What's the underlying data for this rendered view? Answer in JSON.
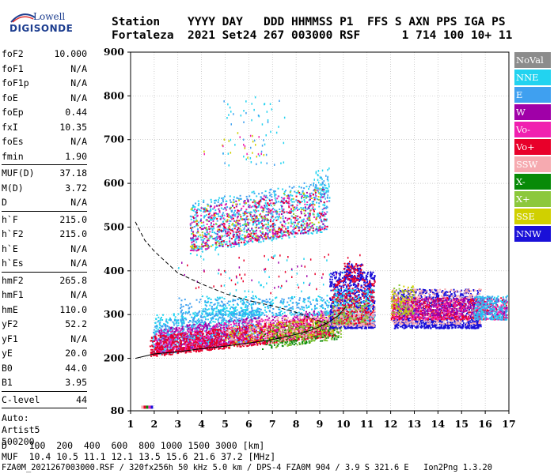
{
  "logo": {
    "line1": "Lowell",
    "line2": "DIGISONDE"
  },
  "header": {
    "line1": "Station    YYYY DAY   DDD HHMMSS P1  FFS S AXN PPS IGA PS",
    "line2": "Fortaleza  2021 Set24 267 003000 RSF      1 714 100 10+ 11"
  },
  "params": {
    "groups": [
      [
        [
          "foF2",
          "10.000"
        ],
        [
          "foF1",
          "N/A"
        ],
        [
          "foF1p",
          "N/A"
        ],
        [
          "foE",
          "N/A"
        ],
        [
          "foEp",
          "0.44"
        ],
        [
          "fxI",
          "10.35"
        ],
        [
          "foEs",
          "N/A"
        ],
        [
          "fmin",
          "1.90"
        ]
      ],
      [
        [
          "MUF(D)",
          "37.18"
        ],
        [
          "M(D)",
          "3.72"
        ],
        [
          "D",
          "N/A"
        ]
      ],
      [
        [
          "h`F",
          "215.0"
        ],
        [
          "h`F2",
          "215.0"
        ],
        [
          "h`E",
          "N/A"
        ],
        [
          "h`Es",
          "N/A"
        ]
      ],
      [
        [
          "hmF2",
          "265.8"
        ],
        [
          "hmF1",
          "N/A"
        ],
        [
          "hmE",
          "110.0"
        ],
        [
          "yF2",
          "52.2"
        ],
        [
          "yF1",
          "N/A"
        ],
        [
          "yE",
          "20.0"
        ],
        [
          "B0",
          "44.0"
        ],
        [
          "B1",
          "3.95"
        ]
      ],
      [
        [
          "C-level",
          "44"
        ]
      ]
    ],
    "auto_lines": [
      "Auto:",
      "Artist5",
      "500200"
    ]
  },
  "legend": [
    {
      "label": "NoVal",
      "color": "#8c8c8c"
    },
    {
      "label": "NNE",
      "color": "#22d3f0"
    },
    {
      "label": "E",
      "color": "#3fa0f0"
    },
    {
      "label": "W",
      "color": "#a000a8"
    },
    {
      "label": "Vo-",
      "color": "#f020b0"
    },
    {
      "label": "Vo+",
      "color": "#e8002a"
    },
    {
      "label": "SSW",
      "color": "#f6aab0"
    },
    {
      "label": "X-",
      "color": "#088a08"
    },
    {
      "label": "X+",
      "color": "#8cc83c"
    },
    {
      "label": "SSE",
      "color": "#d0d000"
    },
    {
      "label": "NNW",
      "color": "#1a10d8"
    }
  ],
  "footer": {
    "line1": "D    100  200  400  600  800 1000 1500 3000 [km]",
    "line2": "MUF  10.4 10.5 11.1 12.1 13.5 15.6 21.6 37.2 [MHz]",
    "line3": "FZA0M_2021267003000.RSF / 320fx256h 50 kHz 5.0 km / DPS-4 FZA0M 904 / 3.9 S 321.6 E   Ion2Png 1.3.20"
  },
  "chart_data": {
    "type": "scatter",
    "xlim": [
      1,
      17
    ],
    "ylim": [
      80,
      900
    ],
    "xticks": [
      1,
      2,
      3,
      4,
      5,
      6,
      7,
      8,
      9,
      10,
      11,
      12,
      13,
      14,
      15,
      16,
      17
    ],
    "yticks": [
      80,
      200,
      300,
      400,
      500,
      600,
      700,
      800,
      900
    ],
    "grid": true,
    "curves": [
      {
        "style": "solid",
        "x": [
          1.2,
          2,
          3,
          4,
          5,
          6,
          7,
          7.8,
          8.5,
          9,
          9.5,
          9.8,
          10.1
        ],
        "y": [
          200,
          210,
          215,
          222,
          228,
          235,
          243,
          252,
          262,
          272,
          287,
          298,
          318
        ]
      },
      {
        "style": "dashed",
        "x": [
          1.2,
          1.6,
          2,
          2.5,
          3,
          4,
          5,
          6,
          7,
          8,
          8.5,
          9,
          9.4
        ],
        "y": [
          512,
          470,
          445,
          420,
          395,
          370,
          348,
          332,
          320,
          305,
          295,
          285,
          278
        ]
      }
    ],
    "regions": [
      {
        "color": "NNE",
        "x": [
          1.9,
          6.2
        ],
        "y": [
          208,
          300
        ],
        "n": 650,
        "slope": 12
      },
      {
        "color": "E",
        "x": [
          1.9,
          6.5
        ],
        "y": [
          212,
          285
        ],
        "n": 550,
        "slope": 12
      },
      {
        "color": "W",
        "x": [
          2,
          9.4
        ],
        "y": [
          210,
          270
        ],
        "n": 700,
        "slope": 10
      },
      {
        "color": "Vo-",
        "x": [
          2,
          9.4
        ],
        "y": [
          212,
          265
        ],
        "n": 600,
        "slope": 10
      },
      {
        "color": "Vo+",
        "x": [
          1.8,
          9.7
        ],
        "y": [
          205,
          252
        ],
        "n": 950,
        "slope": 10
      },
      {
        "color": "X-",
        "x": [
          6.5,
          9.8
        ],
        "y": [
          222,
          270
        ],
        "n": 200,
        "slope": 12
      },
      {
        "color": "X+",
        "x": [
          7,
          9.9
        ],
        "y": [
          225,
          280
        ],
        "n": 180,
        "slope": 12
      },
      {
        "color": "SSE",
        "x": [
          5,
          9.9
        ],
        "y": [
          228,
          275
        ],
        "n": 140,
        "slope": 12
      },
      {
        "color": "SSW",
        "x": [
          5,
          9.9
        ],
        "y": [
          225,
          280
        ],
        "n": 160,
        "slope": 12
      },
      {
        "color": "NNE",
        "x": [
          4,
          9.4
        ],
        "y": [
          300,
          345
        ],
        "n": 220,
        "slope": 0
      },
      {
        "color": "E",
        "x": [
          3,
          9.4
        ],
        "y": [
          300,
          340
        ],
        "n": 200,
        "slope": 0
      },
      {
        "color": "NNE",
        "x": [
          3.5,
          9.3
        ],
        "y": [
          440,
          560
        ],
        "n": 500,
        "slope": 15
      },
      {
        "color": "E",
        "x": [
          3.5,
          9.3
        ],
        "y": [
          445,
          560
        ],
        "n": 350,
        "slope": 15
      },
      {
        "color": "W",
        "x": [
          3.5,
          9.3
        ],
        "y": [
          445,
          545
        ],
        "n": 220,
        "slope": 15
      },
      {
        "color": "Vo-",
        "x": [
          3.5,
          9.3
        ],
        "y": [
          445,
          545
        ],
        "n": 200,
        "slope": 15
      },
      {
        "color": "Vo+",
        "x": [
          3.5,
          9.3
        ],
        "y": [
          445,
          540
        ],
        "n": 180,
        "slope": 15
      },
      {
        "color": "X+",
        "x": [
          3.5,
          9
        ],
        "y": [
          450,
          545
        ],
        "n": 80,
        "slope": 15
      },
      {
        "color": "SSE",
        "x": [
          3.5,
          9
        ],
        "y": [
          450,
          545
        ],
        "n": 70,
        "slope": 15
      },
      {
        "color": "NNW",
        "x": [
          9.4,
          11.3
        ],
        "y": [
          270,
          400
        ],
        "n": 800,
        "slope": 0
      },
      {
        "color": "NNE",
        "x": [
          9.5,
          11.3
        ],
        "y": [
          280,
          360
        ],
        "n": 250,
        "slope": 0
      },
      {
        "color": "SSW",
        "x": [
          9.5,
          11.3
        ],
        "y": [
          275,
          320
        ],
        "n": 300,
        "slope": 0
      },
      {
        "color": "Vo+",
        "x": [
          9.5,
          11.3
        ],
        "y": [
          280,
          380
        ],
        "n": 250,
        "slope": 0
      },
      {
        "color": "X+",
        "x": [
          9.5,
          11
        ],
        "y": [
          280,
          340
        ],
        "n": 100,
        "slope": 0
      },
      {
        "color": "NNW",
        "x": [
          12.1,
          15.8
        ],
        "y": [
          270,
          360
        ],
        "n": 1100,
        "slope": 0
      },
      {
        "color": "SSW",
        "x": [
          12,
          15.8
        ],
        "y": [
          280,
          360
        ],
        "n": 500,
        "slope": 0
      },
      {
        "color": "Vo+",
        "x": [
          12,
          16.9
        ],
        "y": [
          290,
          340
        ],
        "n": 450,
        "slope": 0
      },
      {
        "color": "Vo-",
        "x": [
          12,
          16.9
        ],
        "y": [
          290,
          340
        ],
        "n": 350,
        "slope": 0
      },
      {
        "color": "W",
        "x": [
          12.5,
          16.9
        ],
        "y": [
          300,
          340
        ],
        "n": 250,
        "slope": 0
      },
      {
        "color": "NNE",
        "x": [
          15.5,
          16.9
        ],
        "y": [
          290,
          345
        ],
        "n": 150,
        "slope": 0
      },
      {
        "color": "E",
        "x": [
          15.5,
          16.9
        ],
        "y": [
          290,
          345
        ],
        "n": 100,
        "slope": 0
      },
      {
        "color": "X+",
        "x": [
          12,
          13
        ],
        "y": [
          300,
          370
        ],
        "n": 60,
        "slope": 0
      },
      {
        "color": "SSE",
        "x": [
          12,
          13
        ],
        "y": [
          300,
          370
        ],
        "n": 60,
        "slope": 0
      },
      {
        "color": "NNW",
        "x": [
          10,
          10.8
        ],
        "y": [
          380,
          420
        ],
        "n": 90,
        "slope": 0
      },
      {
        "color": "Vo+",
        "x": [
          10,
          10.8
        ],
        "y": [
          380,
          420
        ],
        "n": 60,
        "slope": 0
      }
    ],
    "scatter_clusters": [
      {
        "color": "NNE",
        "x": [
          4.8,
          7.5
        ],
        "y": [
          640,
          800
        ],
        "n": 40
      },
      {
        "color": "E",
        "x": [
          4.8,
          7.5
        ],
        "y": [
          640,
          800
        ],
        "n": 20
      },
      {
        "color": "SSE",
        "x": [
          4,
          7
        ],
        "y": [
          660,
          720
        ],
        "n": 14
      },
      {
        "color": "Vo-",
        "x": [
          4,
          7
        ],
        "y": [
          660,
          720
        ],
        "n": 10
      },
      {
        "color": "Vo+",
        "x": [
          3,
          11
        ],
        "y": [
          350,
          440
        ],
        "n": 45
      },
      {
        "color": "NNE",
        "x": [
          3,
          11
        ],
        "y": [
          350,
          440
        ],
        "n": 40
      },
      {
        "color": "W",
        "x": [
          3,
          10
        ],
        "y": [
          360,
          430
        ],
        "n": 20
      },
      {
        "color": "NNE",
        "x": [
          8.7,
          9.4
        ],
        "y": [
          560,
          640
        ],
        "n": 40
      },
      {
        "color": "E",
        "x": [
          8.7,
          9.4
        ],
        "y": [
          560,
          620
        ],
        "n": 25
      }
    ],
    "low_marks": [
      {
        "color": "SSW",
        "x": 1.45,
        "y": 92
      },
      {
        "color": "Vo+",
        "x": 1.55,
        "y": 92
      },
      {
        "color": "X-",
        "x": 1.65,
        "y": 92
      },
      {
        "color": "Vo-",
        "x": 1.75,
        "y": 92
      },
      {
        "color": "NNW",
        "x": 1.85,
        "y": 92
      }
    ]
  }
}
